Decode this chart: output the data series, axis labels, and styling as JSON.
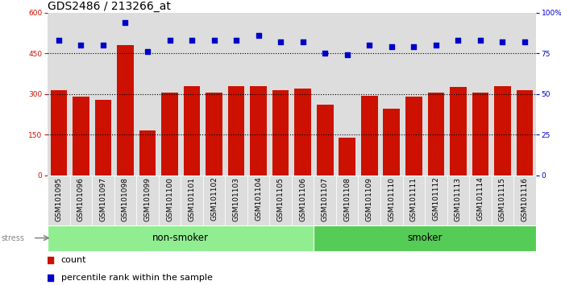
{
  "title": "GDS2486 / 213266_at",
  "samples": [
    "GSM101095",
    "GSM101096",
    "GSM101097",
    "GSM101098",
    "GSM101099",
    "GSM101100",
    "GSM101101",
    "GSM101102",
    "GSM101103",
    "GSM101104",
    "GSM101105",
    "GSM101106",
    "GSM101107",
    "GSM101108",
    "GSM101109",
    "GSM101110",
    "GSM101111",
    "GSM101112",
    "GSM101113",
    "GSM101114",
    "GSM101115",
    "GSM101116"
  ],
  "counts": [
    315,
    290,
    280,
    480,
    165,
    305,
    330,
    305,
    330,
    330,
    315,
    320,
    262,
    140,
    295,
    245,
    290,
    305,
    325,
    305,
    330,
    315
  ],
  "percentiles": [
    83,
    80,
    80,
    94,
    76,
    83,
    83,
    83,
    83,
    86,
    82,
    82,
    75,
    74,
    80,
    79,
    79,
    80,
    83,
    83,
    82,
    82
  ],
  "groups": [
    "non-smoker",
    "non-smoker",
    "non-smoker",
    "non-smoker",
    "non-smoker",
    "non-smoker",
    "non-smoker",
    "non-smoker",
    "non-smoker",
    "non-smoker",
    "non-smoker",
    "non-smoker",
    "smoker",
    "smoker",
    "smoker",
    "smoker",
    "smoker",
    "smoker",
    "smoker",
    "smoker",
    "smoker",
    "smoker"
  ],
  "non_smoker_color": "#90EE90",
  "smoker_color": "#55CC55",
  "bar_color": "#CC1100",
  "dot_color": "#0000CC",
  "bar_bg_color": "#DDDDDD",
  "ylim_left": [
    0,
    600
  ],
  "ylim_right": [
    0,
    100
  ],
  "yticks_left": [
    0,
    150,
    300,
    450,
    600
  ],
  "yticks_right": [
    0,
    25,
    50,
    75,
    100
  ],
  "grid_values": [
    150,
    300,
    450
  ],
  "stress_label": "stress",
  "non_smoker_label": "non-smoker",
  "smoker_label": "smoker",
  "legend_count": "count",
  "legend_pct": "percentile rank within the sample",
  "title_fontsize": 10,
  "tick_fontsize": 6.5,
  "label_fontsize": 8,
  "group_fontsize": 8.5
}
